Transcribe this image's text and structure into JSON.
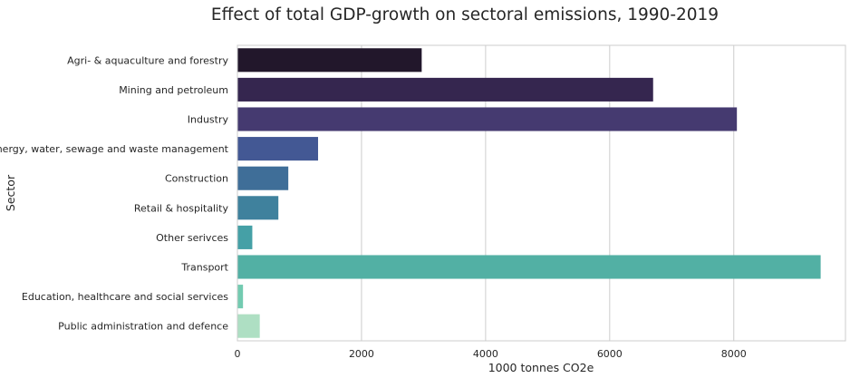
{
  "chart_data": {
    "type": "bar",
    "orientation": "horizontal",
    "title": "Effect of total GDP-growth on sectoral emissions, 1990-2019",
    "xlabel": "1000 tonnes CO2e",
    "ylabel": "Sector",
    "xlim": [
      0,
      9800
    ],
    "xticks": [
      0,
      2000,
      4000,
      6000,
      8000
    ],
    "xtick_labels": [
      "0",
      "2000",
      "4000",
      "6000",
      "8000"
    ],
    "grid": "vertical",
    "categories": [
      "Agri- & aquaculture and forestry",
      "Mining and petroleum",
      "Industry",
      "Energy, water, sewage and waste management",
      "Construction",
      "Retail & hospitality",
      "Other serivces",
      "Transport",
      "Education, healthcare and social services",
      "Public administration and defence"
    ],
    "values": [
      2970,
      6700,
      8050,
      1300,
      820,
      660,
      240,
      9400,
      90,
      360
    ],
    "colors": [
      "#22172b",
      "#35264f",
      "#453a70",
      "#435894",
      "#3f6e98",
      "#3f819d",
      "#45a0a6",
      "#52b0a4",
      "#73cbb1",
      "#aedfc3"
    ]
  }
}
